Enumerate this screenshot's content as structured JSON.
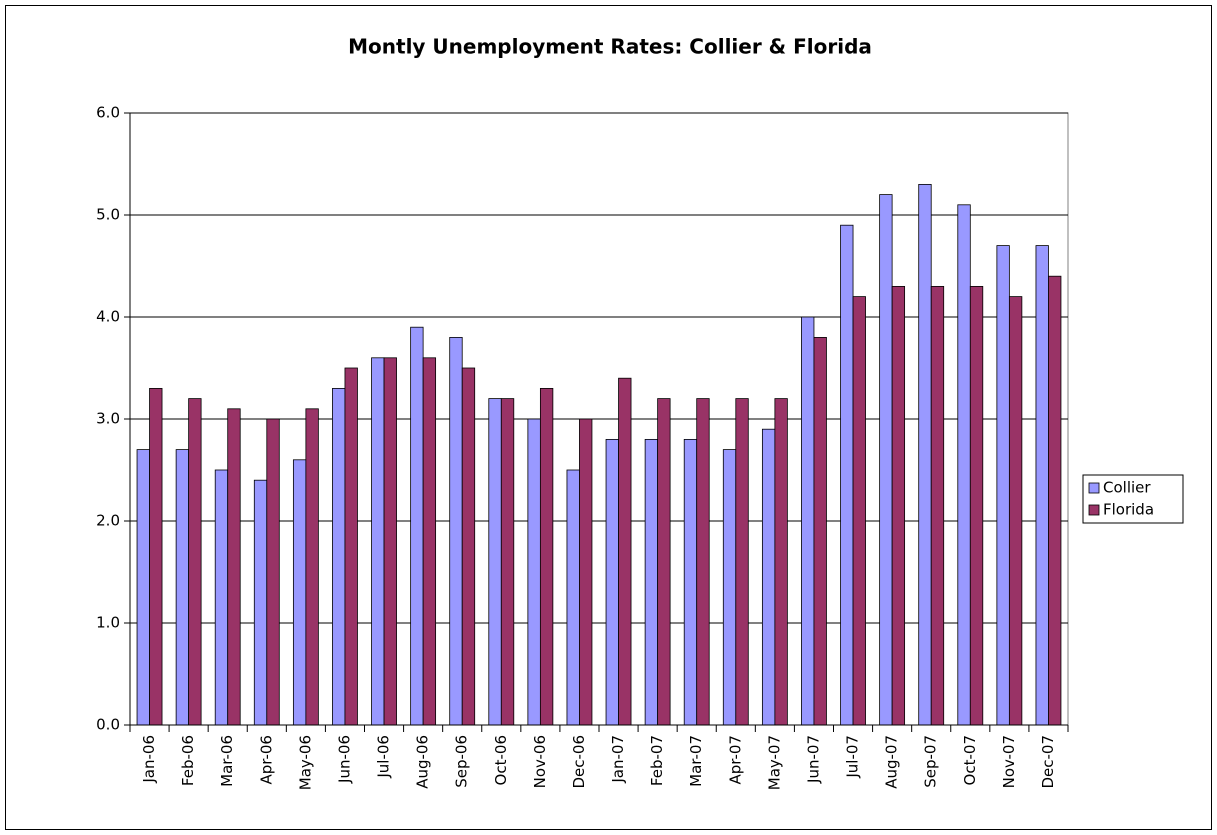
{
  "chart_data": {
    "type": "bar",
    "title": "Montly Unemployment Rates: Collier & Florida",
    "categories": [
      "Jan-06",
      "Feb-06",
      "Mar-06",
      "Apr-06",
      "May-06",
      "Jun-06",
      "Jul-06",
      "Aug-06",
      "Sep-06",
      "Oct-06",
      "Nov-06",
      "Dec-06",
      "Jan-07",
      "Feb-07",
      "Mar-07",
      "Apr-07",
      "May-07",
      "Jun-07",
      "Jul-07",
      "Aug-07",
      "Sep-07",
      "Oct-07",
      "Nov-07",
      "Dec-07"
    ],
    "series": [
      {
        "name": "Collier",
        "color": "#9999ff",
        "values": [
          2.7,
          2.7,
          2.5,
          2.4,
          2.6,
          3.3,
          3.6,
          3.9,
          3.8,
          3.2,
          3.0,
          2.5,
          2.8,
          2.8,
          2.8,
          2.7,
          2.9,
          4.0,
          4.9,
          5.2,
          5.3,
          5.1,
          4.7,
          4.7
        ]
      },
      {
        "name": "Florida",
        "color": "#993366",
        "values": [
          3.3,
          3.2,
          3.1,
          3.0,
          3.1,
          3.5,
          3.6,
          3.6,
          3.5,
          3.2,
          3.3,
          3.0,
          3.4,
          3.2,
          3.2,
          3.2,
          3.2,
          3.8,
          4.2,
          4.3,
          4.3,
          4.3,
          4.2,
          4.4
        ]
      }
    ],
    "ylim": [
      0,
      6
    ],
    "yticks": [
      {
        "value": 0,
        "label": "0.0"
      },
      {
        "value": 1,
        "label": "1.0"
      },
      {
        "value": 2,
        "label": "2.0"
      },
      {
        "value": 3,
        "label": "3.0"
      },
      {
        "value": 4,
        "label": "4.0"
      },
      {
        "value": 5,
        "label": "5.0"
      },
      {
        "value": 6,
        "label": "6.0"
      }
    ],
    "grid": true,
    "legend": "right"
  }
}
